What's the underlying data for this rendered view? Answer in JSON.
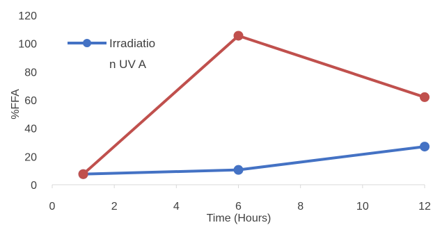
{
  "chart_data": {
    "type": "line",
    "xlabel": "Time (Hours)",
    "ylabel": "%FFA",
    "xlim": [
      0,
      12
    ],
    "ylim": [
      0,
      120
    ],
    "x_ticks": [
      "0",
      "2",
      "4",
      "6",
      "8",
      "10",
      "12"
    ],
    "y_ticks": [
      "0",
      "20",
      "40",
      "60",
      "80",
      "100",
      "120"
    ],
    "grid": false,
    "legend_position": "top-left",
    "legend_lines": [
      "Irradiatio",
      "n UV A"
    ],
    "series": [
      {
        "name": "Irradiation UV A",
        "color": "#4472C4",
        "x": [
          1,
          6,
          12
        ],
        "y": [
          7.5,
          10.5,
          27
        ]
      },
      {
        "color": "#C0504D",
        "x": [
          1,
          6,
          12
        ],
        "y": [
          7.5,
          105.5,
          62
        ]
      }
    ]
  }
}
